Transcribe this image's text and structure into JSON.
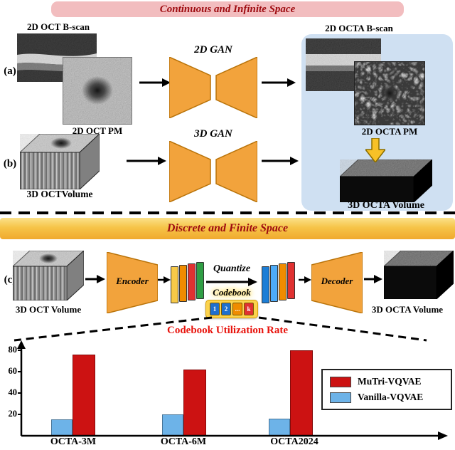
{
  "banner_top": {
    "label": "Continuous and Infinite Space"
  },
  "banner_bottom": {
    "label": "Discrete and Finite Space"
  },
  "row_a": {
    "tag": "(a)",
    "oct_bscan_label": "2D OCT B-scan",
    "oct_pm_label": "2D OCT PM",
    "gan_label": "2D GAN",
    "octa_bscan_label": "2D OCTA B-scan",
    "octa_pm_label": "2D OCTA PM"
  },
  "row_b": {
    "tag": "(b)",
    "oct_volume_label": "3D OCTVolume",
    "gan_label": "3D GAN",
    "octa_volume_label": "3D OCTA Volume"
  },
  "row_c": {
    "tag": "(c)",
    "oct_volume_label": "3D OCT Volume",
    "encoder_label": "Encoder",
    "quantize_label": "Quantize",
    "codebook_label": "Codebook",
    "decoder_label": "Decoder",
    "octa_volume_label": "3D OCTA Volume",
    "codebook_tokens": [
      {
        "label": "1",
        "color": "#1f6fce"
      },
      {
        "label": "2",
        "color": "#1f6fce"
      },
      {
        "label": "...",
        "color": "#f08c00"
      },
      {
        "label": "k",
        "color": "#e03131"
      }
    ],
    "encoder_token_colors": [
      "#f7c948",
      "#f08c00",
      "#e03131",
      "#2f9e44"
    ],
    "decoder_token_colors": [
      "#1c7ed6",
      "#4dabf7",
      "#f08c00",
      "#e03131"
    ]
  },
  "chart_data": {
    "type": "bar",
    "title": "Codebook Utilization Rate",
    "title_color": "#e8130c",
    "categories": [
      "OCTA-3M",
      "OCTA-6M",
      "OCTA2024"
    ],
    "series": [
      {
        "name": "MuTri-VQVAE",
        "color": "#cc1212",
        "values": [
          76,
          62,
          80
        ]
      },
      {
        "name": "Vanilla-VQVAE",
        "color": "#6db3e8",
        "values": [
          15,
          20,
          16
        ]
      }
    ],
    "yticks": [
      20,
      40,
      60,
      80
    ],
    "ylim": [
      0,
      88
    ],
    "grid": false,
    "legend_position": "right",
    "xlabel": "",
    "ylabel": ""
  },
  "colors": {
    "banner_pink": "#f2bdbf",
    "banner_yellow": "#f6c448",
    "dark_red_text": "#9e0b10",
    "gan_orange": "#f2a33c",
    "blue_panel": "#cfe0f2"
  }
}
